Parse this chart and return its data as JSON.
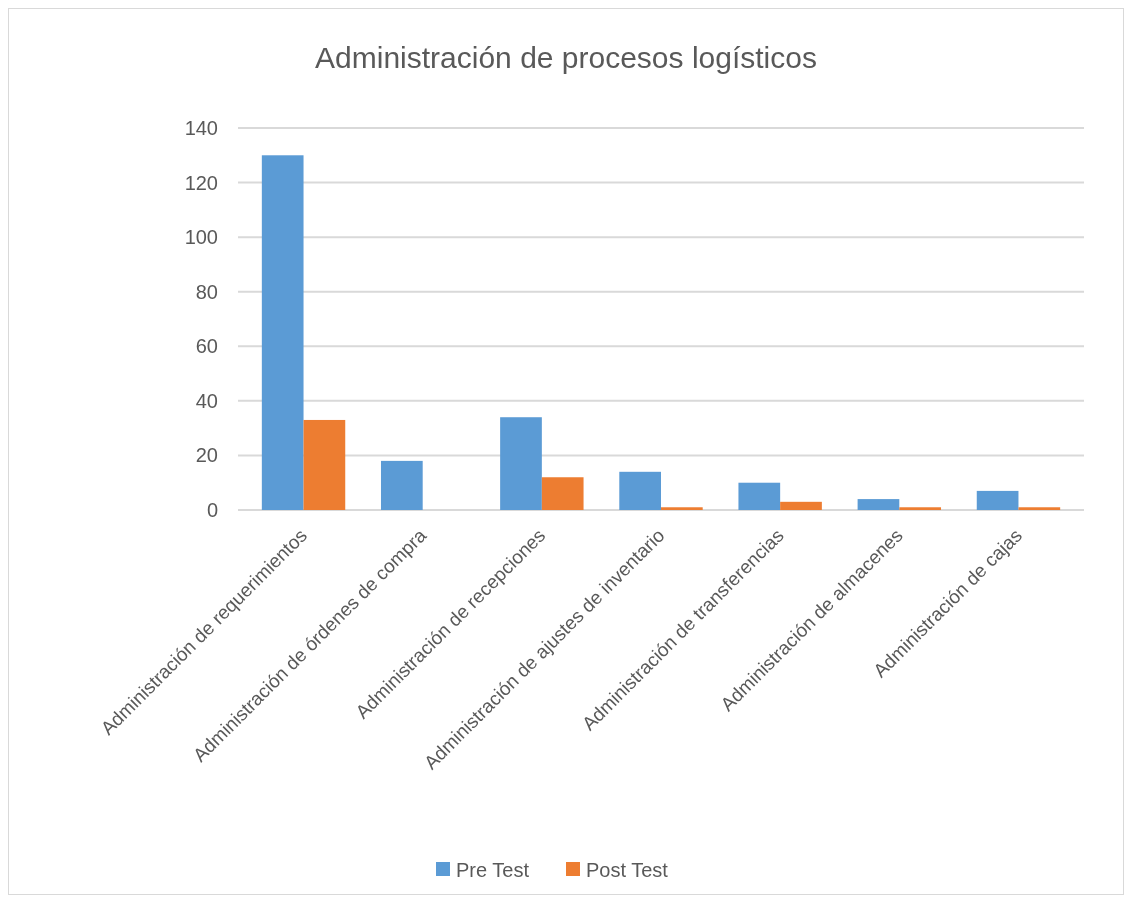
{
  "chart_data": {
    "type": "bar",
    "title": "Administración de procesos logísticos",
    "categories": [
      "Administración de requerimientos",
      "Administración de órdenes de compra",
      "Administración de recepciones",
      "Administración de ajustes de inventario",
      "Administración de transferencias",
      "Administración de almacenes",
      "Administración de cajas"
    ],
    "series": [
      {
        "name": "Pre Test",
        "color": "#5b9bd5",
        "values": [
          130,
          18,
          34,
          14,
          10,
          4,
          7
        ]
      },
      {
        "name": "Post Test",
        "color": "#ed7d31",
        "values": [
          33,
          0,
          12,
          1,
          3,
          1,
          1
        ]
      }
    ],
    "ylim": [
      0,
      140
    ],
    "yticks": [
      0,
      20,
      40,
      60,
      80,
      100,
      120,
      140
    ],
    "grid": "y",
    "legend": "bottom"
  }
}
